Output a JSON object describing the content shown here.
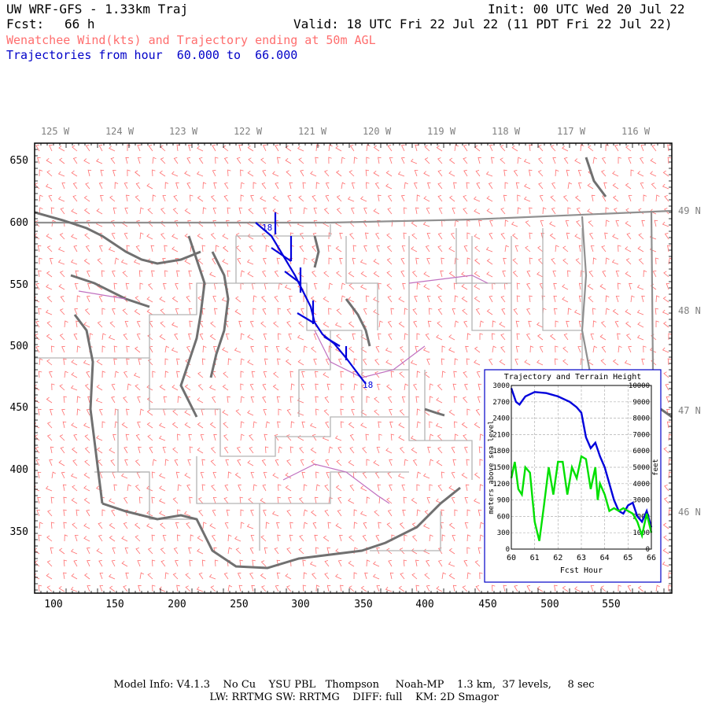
{
  "header": {
    "model": "UW WRF-GFS - 1.33km Traj",
    "init": "Init: 00 UTC Wed 20 Jul 22",
    "fcst_label": "Fcst:",
    "fcst_value": "66 h",
    "valid": "Valid: 18 UTC Fri 22 Jul 22 (11 PDT Fri 22 Jul 22)",
    "subtitle": "Wenatchee Wind(kts) and Trajectory ending at 50m AGL",
    "traj_hours": "Trajectories from hour  60.000 to  66.000"
  },
  "map": {
    "top_lon_labels": [
      "125 W",
      "124 W",
      "123 W",
      "122 W",
      "121 W",
      "120 W",
      "119 W",
      "118 W",
      "117 W",
      "116 W"
    ],
    "right_lat_labels": [
      "49 N",
      "48 N",
      "47 N",
      "46 N"
    ],
    "y_ticks": [
      "650",
      "600",
      "550",
      "500",
      "450",
      "400",
      "350"
    ],
    "x_ticks": [
      "100",
      "150",
      "200",
      "250",
      "300",
      "350",
      "400",
      "450",
      "500",
      "550"
    ],
    "trajectory_start_label": "18",
    "trajectory_end_label": "18",
    "colors": {
      "wind_barbs": "#ff6e6e",
      "coast": "#707070",
      "borders": "#b4b4b4",
      "trajectory": "#0000dc",
      "rivers": "#c070c0",
      "green": "#00e000"
    }
  },
  "inset": {
    "title": "Trajectory and Terrain Height",
    "left_ticks": [
      "3000",
      "2700",
      "2400",
      "2100",
      "1800",
      "1500",
      "1200",
      "900",
      "600",
      "300",
      "0"
    ],
    "right_ticks": [
      "10000",
      "9000",
      "8000",
      "7000",
      "6000",
      "5000",
      "4000",
      "3000",
      "2000",
      "1000",
      "0"
    ],
    "bottom_ticks": [
      "60",
      "61",
      "62",
      "63",
      "64",
      "65",
      "66"
    ],
    "ylabel_left": "meters above sea level",
    "ylabel_right": "feet",
    "xlabel": "Fcst Hour"
  },
  "chart_data": {
    "type": "line",
    "title": "Trajectory and Terrain Height",
    "xlabel": "Fcst Hour",
    "ylabel": "meters above sea level",
    "xlim": [
      60,
      66
    ],
    "ylim": [
      0,
      3000
    ],
    "series": [
      {
        "color": "#0000dc",
        "x": [
          60,
          60.2,
          60.35,
          60.6,
          61,
          61.5,
          62,
          62.5,
          62.8,
          63,
          63.2,
          63.4,
          63.6,
          63.8,
          64,
          64.2,
          64.4,
          64.6,
          64.8,
          65,
          65.2,
          65.4,
          65.6,
          65.8,
          66
        ],
        "values": [
          2950,
          2700,
          2650,
          2800,
          2880,
          2860,
          2800,
          2700,
          2600,
          2500,
          2050,
          1850,
          1950,
          1700,
          1500,
          1200,
          900,
          700,
          650,
          800,
          850,
          600,
          500,
          700,
          400
        ]
      },
      {
        "color": "#00e000",
        "x": [
          60,
          60.15,
          60.3,
          60.45,
          60.6,
          60.8,
          61,
          61.2,
          61.4,
          61.6,
          61.8,
          62,
          62.2,
          62.4,
          62.6,
          62.8,
          63,
          63.2,
          63.4,
          63.6,
          63.7,
          63.8,
          64,
          64.2,
          64.4,
          64.6,
          64.8,
          65,
          65.2,
          65.4,
          65.6,
          65.8,
          66
        ],
        "values": [
          1300,
          1600,
          1100,
          1000,
          1500,
          1400,
          500,
          150,
          800,
          1500,
          1000,
          1600,
          1600,
          1000,
          1500,
          1300,
          1700,
          1650,
          1100,
          1500,
          900,
          1200,
          1000,
          700,
          750,
          700,
          750,
          700,
          650,
          500,
          250,
          650,
          300
        ]
      }
    ]
  },
  "footer": {
    "line1": "Model Info: V4.1.3    No Cu    YSU PBL   Thompson     Noah-MP    1.3 km,  37 levels,     8 sec",
    "line2": "LW: RRTMG SW: RRTMG    DIFF: full    KM: 2D Smagor"
  }
}
